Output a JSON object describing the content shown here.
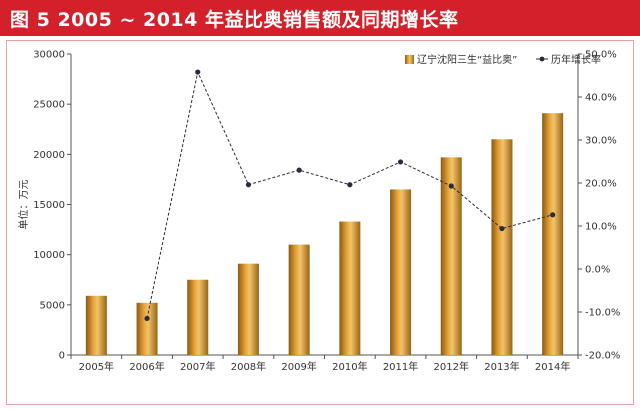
{
  "header": {
    "title": "图 5  2005 ~ 2014 年益比奥销售额及同期增长率"
  },
  "chart_data": {
    "type": "bar",
    "categories": [
      "2005年",
      "2006年",
      "2007年",
      "2008年",
      "2009年",
      "2010年",
      "2011年",
      "2012年",
      "2013年",
      "2014年"
    ],
    "series": [
      {
        "name": "辽宁沈阳三生“益比奥”",
        "type": "bar",
        "axis": "left",
        "color": "#c8821c",
        "values": [
          5900,
          5200,
          7500,
          9100,
          11000,
          13300,
          16500,
          19700,
          21500,
          24100
        ]
      },
      {
        "name": "历年增长率",
        "type": "line",
        "axis": "right",
        "color": "#2b2b3b",
        "values": [
          null,
          -11.5,
          45.8,
          19.6,
          23.0,
          19.6,
          24.9,
          19.3,
          9.4,
          12.6
        ]
      }
    ],
    "ylabel": "单位：万元",
    "y_left": {
      "min": 0,
      "max": 30000,
      "ticks": [
        0,
        5000,
        10000,
        15000,
        20000,
        25000,
        30000
      ]
    },
    "y_right": {
      "min": -20,
      "max": 50,
      "ticks": [
        "-20.0%",
        "-10.0%",
        "0.0%",
        "10.0%",
        "20.0%",
        "30.0%",
        "40.0%",
        "50.0%"
      ],
      "tick_values": [
        -20,
        -10,
        0,
        10,
        20,
        30,
        40,
        50
      ]
    },
    "legend_position": "top-right",
    "grid": false
  }
}
